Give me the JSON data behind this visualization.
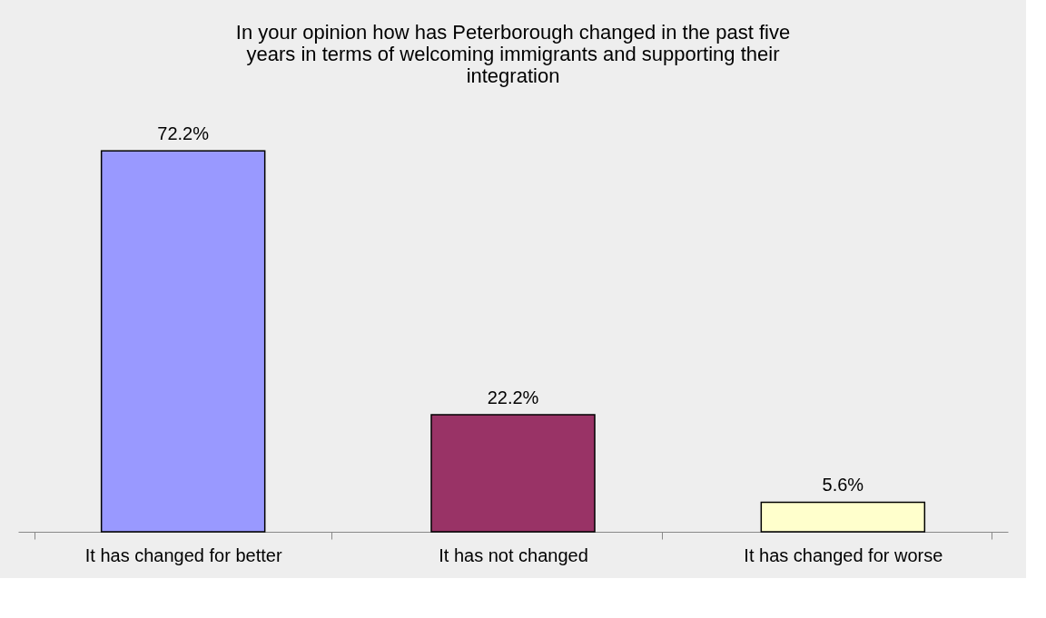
{
  "chart_data": {
    "type": "bar",
    "title": "In your opinion how has Peterborough changed in the past five years in terms of welcoming  immigrants and supporting their integration",
    "categories": [
      "It has changed for better",
      "It has not changed",
      "It has changed for worse"
    ],
    "values": [
      72.2,
      22.2,
      5.6
    ],
    "colors": [
      "#9999ff",
      "#993366",
      "#ffffcc"
    ],
    "value_labels": [
      "72.2%",
      "22.2%",
      "5.6%"
    ],
    "legend": false
  }
}
